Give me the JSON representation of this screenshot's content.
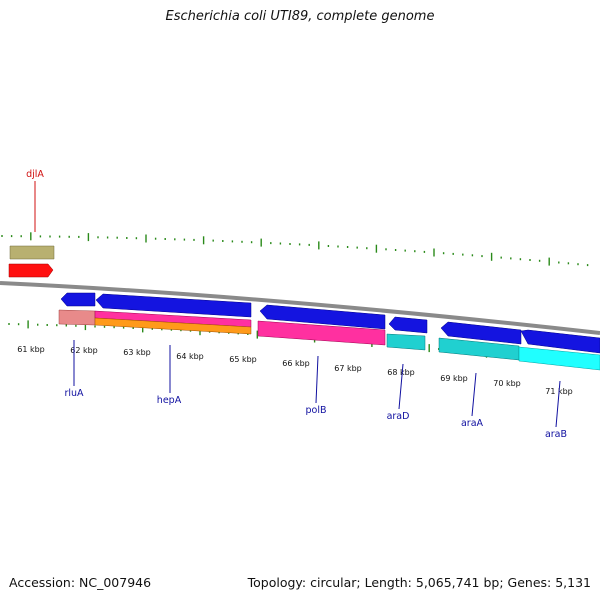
{
  "title": "Escherichia coli UTI89, complete genome",
  "footer": {
    "accession": "Accession: NC_007946",
    "summary": "Topology: circular; Length: 5,065,741 bp; Genes: 5,131"
  },
  "colors": {
    "tick": "#2a8a1a",
    "backbone": "#8a8a8a",
    "label_blue": "#1010a0",
    "label_red": "#d01010"
  },
  "ticks": [
    {
      "text": "61 kbp"
    },
    {
      "text": "62 kbp"
    },
    {
      "text": "63 kbp"
    },
    {
      "text": "64 kbp"
    },
    {
      "text": "65 kbp"
    },
    {
      "text": "66 kbp"
    },
    {
      "text": "67 kbp"
    },
    {
      "text": "68 kbp"
    },
    {
      "text": "69 kbp"
    },
    {
      "text": "70 kbp"
    },
    {
      "text": "71 kbp"
    }
  ],
  "gene_labels": [
    {
      "text": "djlA",
      "color": "red"
    },
    {
      "text": "rluA",
      "color": "blue"
    },
    {
      "text": "hepA",
      "color": "blue"
    },
    {
      "text": "polB",
      "color": "blue"
    },
    {
      "text": "araD",
      "color": "blue"
    },
    {
      "text": "araA",
      "color": "blue"
    },
    {
      "text": "araB",
      "color": "blue"
    }
  ]
}
